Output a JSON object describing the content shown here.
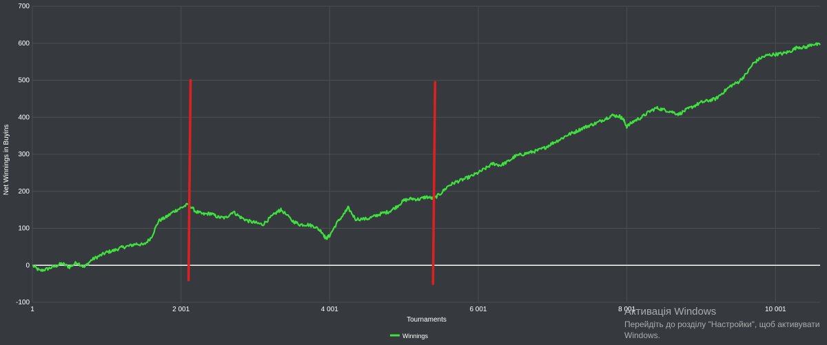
{
  "colors": {
    "background": "#363a3e",
    "grid": "#4a4f54",
    "series": "#3fe03f",
    "zero_line": "#ffffff",
    "annotation": "#e02020",
    "text": "#ffffff"
  },
  "chart_data": {
    "type": "line",
    "title": "",
    "xlabel": "Tournaments",
    "ylabel": "Net Winnings in Buyins",
    "xlim": [
      1,
      10601
    ],
    "ylim": [
      -100,
      700
    ],
    "grid": true,
    "legend_position": "bottom-center",
    "x_ticks": [
      {
        "value": 1,
        "label": "1"
      },
      {
        "value": 2001,
        "label": "2 001"
      },
      {
        "value": 4001,
        "label": "4 001"
      },
      {
        "value": 6001,
        "label": "6 001"
      },
      {
        "value": 8001,
        "label": "8 001"
      },
      {
        "value": 10001,
        "label": "10 001"
      }
    ],
    "y_ticks": [
      {
        "value": -100,
        "label": "-100"
      },
      {
        "value": 0,
        "label": "0"
      },
      {
        "value": 100,
        "label": "100"
      },
      {
        "value": 200,
        "label": "200"
      },
      {
        "value": 300,
        "label": "300"
      },
      {
        "value": 400,
        "label": "400"
      },
      {
        "value": 500,
        "label": "500"
      },
      {
        "value": 600,
        "label": "600"
      },
      {
        "value": 700,
        "label": "700"
      }
    ],
    "reference_lines": [
      {
        "orientation": "horizontal",
        "y": 0
      }
    ],
    "annotations": [
      {
        "type": "vertical-marker",
        "x": 2130,
        "y_from": -40,
        "y_to": 500
      },
      {
        "type": "vertical-marker",
        "x": 5420,
        "y_from": -50,
        "y_to": 495
      }
    ],
    "series": [
      {
        "name": "Winnings",
        "points": [
          [
            1,
            0
          ],
          [
            100,
            -15
          ],
          [
            200,
            -10
          ],
          [
            300,
            -3
          ],
          [
            400,
            5
          ],
          [
            500,
            -5
          ],
          [
            600,
            8
          ],
          [
            700,
            -5
          ],
          [
            800,
            15
          ],
          [
            900,
            25
          ],
          [
            1000,
            35
          ],
          [
            1100,
            40
          ],
          [
            1200,
            48
          ],
          [
            1300,
            52
          ],
          [
            1400,
            58
          ],
          [
            1500,
            55
          ],
          [
            1600,
            75
          ],
          [
            1700,
            120
          ],
          [
            1800,
            130
          ],
          [
            1900,
            145
          ],
          [
            2000,
            155
          ],
          [
            2100,
            165
          ],
          [
            2200,
            145
          ],
          [
            2300,
            138
          ],
          [
            2400,
            140
          ],
          [
            2500,
            130
          ],
          [
            2600,
            128
          ],
          [
            2700,
            145
          ],
          [
            2800,
            130
          ],
          [
            2900,
            120
          ],
          [
            3000,
            115
          ],
          [
            3100,
            110
          ],
          [
            3200,
            128
          ],
          [
            3300,
            145
          ],
          [
            3350,
            150
          ],
          [
            3500,
            120
          ],
          [
            3600,
            110
          ],
          [
            3700,
            110
          ],
          [
            3800,
            105
          ],
          [
            3900,
            90
          ],
          [
            3950,
            72
          ],
          [
            4000,
            80
          ],
          [
            4100,
            115
          ],
          [
            4200,
            140
          ],
          [
            4250,
            155
          ],
          [
            4350,
            125
          ],
          [
            4500,
            125
          ],
          [
            4600,
            132
          ],
          [
            4700,
            140
          ],
          [
            4800,
            145
          ],
          [
            4900,
            158
          ],
          [
            5000,
            175
          ],
          [
            5100,
            180
          ],
          [
            5200,
            178
          ],
          [
            5300,
            185
          ],
          [
            5400,
            180
          ],
          [
            5500,
            195
          ],
          [
            5600,
            215
          ],
          [
            5700,
            225
          ],
          [
            5800,
            232
          ],
          [
            5900,
            240
          ],
          [
            6000,
            250
          ],
          [
            6100,
            262
          ],
          [
            6200,
            275
          ],
          [
            6300,
            270
          ],
          [
            6400,
            280
          ],
          [
            6500,
            295
          ],
          [
            6600,
            300
          ],
          [
            6700,
            305
          ],
          [
            6800,
            310
          ],
          [
            6900,
            318
          ],
          [
            7000,
            330
          ],
          [
            7100,
            340
          ],
          [
            7200,
            352
          ],
          [
            7300,
            360
          ],
          [
            7400,
            370
          ],
          [
            7500,
            378
          ],
          [
            7600,
            385
          ],
          [
            7700,
            395
          ],
          [
            7800,
            405
          ],
          [
            7900,
            403
          ],
          [
            7950,
            395
          ],
          [
            8000,
            375
          ],
          [
            8100,
            390
          ],
          [
            8200,
            400
          ],
          [
            8300,
            415
          ],
          [
            8400,
            425
          ],
          [
            8500,
            420
          ],
          [
            8600,
            415
          ],
          [
            8700,
            408
          ],
          [
            8800,
            420
          ],
          [
            8900,
            430
          ],
          [
            9000,
            440
          ],
          [
            9100,
            445
          ],
          [
            9200,
            450
          ],
          [
            9300,
            468
          ],
          [
            9400,
            485
          ],
          [
            9500,
            495
          ],
          [
            9600,
            515
          ],
          [
            9700,
            545
          ],
          [
            9800,
            560
          ],
          [
            9900,
            568
          ],
          [
            10000,
            570
          ],
          [
            10100,
            572
          ],
          [
            10200,
            578
          ],
          [
            10300,
            590
          ],
          [
            10400,
            588
          ],
          [
            10500,
            598
          ],
          [
            10601,
            595
          ]
        ]
      }
    ]
  },
  "watermark": {
    "title": "Активація Windows",
    "subtitle": "Перейдіть до розділу \"Настройки\", щоб активувати Windows."
  }
}
